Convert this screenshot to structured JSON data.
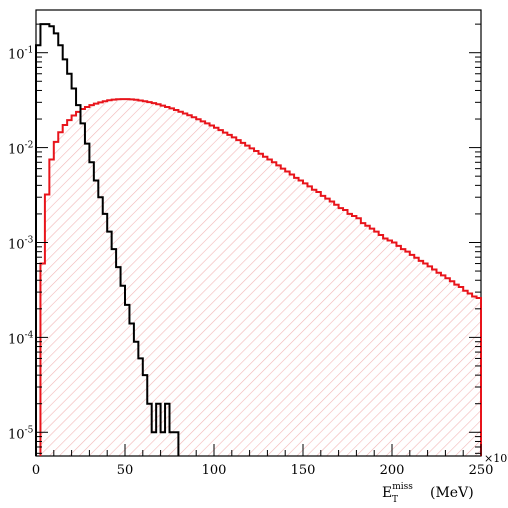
{
  "chart_data": {
    "type": "histogram",
    "y_scale": "log",
    "x_axis": {
      "range": [
        0,
        250
      ],
      "ticks": [
        0,
        50,
        100,
        150,
        200,
        250
      ],
      "exponent_label": "×10",
      "exponent_power": "3",
      "title_main": "E",
      "title_sub": "T",
      "title_sup": "miss",
      "title_unit": "(MeV)"
    },
    "y_axis": {
      "range_decades": [
        -5.25,
        -0.55
      ],
      "ticks": [
        {
          "exp": -1,
          "base": "10",
          "power": "-1"
        },
        {
          "exp": -2,
          "base": "10",
          "power": "-2"
        },
        {
          "exp": -3,
          "base": "10",
          "power": "-3"
        },
        {
          "exp": -4,
          "base": "10",
          "power": "-4"
        },
        {
          "exp": -5,
          "base": "10",
          "power": "-5"
        }
      ]
    },
    "bin_width": 2.5,
    "series": [
      {
        "color": "#e8141b",
        "fill": "hatched-light-red",
        "x_start": 2.5,
        "values": [
          0.0006,
          0.0032,
          0.0075,
          0.0115,
          0.0145,
          0.0173,
          0.0195,
          0.0218,
          0.0238,
          0.0255,
          0.0268,
          0.028,
          0.0291,
          0.03,
          0.0308,
          0.0315,
          0.032,
          0.0323,
          0.0324,
          0.0324,
          0.0322,
          0.0319,
          0.0314,
          0.0308,
          0.0301,
          0.0294,
          0.0286,
          0.0277,
          0.0268,
          0.0259,
          0.0249,
          0.0239,
          0.0229,
          0.0219,
          0.0209,
          0.0199,
          0.0189,
          0.018,
          0.0171,
          0.0162,
          0.0153,
          0.0144,
          0.0136,
          0.0128,
          0.012,
          0.0112,
          0.0105,
          0.0098,
          0.0092,
          0.0086,
          0.008,
          0.0075,
          0.007,
          0.0065,
          0.006,
          0.0056,
          0.0052,
          0.0048,
          0.0045,
          0.0042,
          0.0039,
          0.0036,
          0.0034,
          0.0031,
          0.0029,
          0.0027,
          0.0025,
          0.0023,
          0.0022,
          0.002,
          0.0019,
          0.0018,
          0.0016,
          0.0015,
          0.0014,
          0.0013,
          0.0012,
          0.0011,
          0.00105,
          0.001,
          0.00092,
          0.00085,
          0.0008,
          0.00074,
          0.00069,
          0.00064,
          0.0006,
          0.00056,
          0.00052,
          0.00048,
          0.00045,
          0.00042,
          0.00039,
          0.00036,
          0.00034,
          0.00031,
          0.00029,
          0.00027,
          0.00026
        ]
      },
      {
        "color": "#000000",
        "fill": "none",
        "x_start": 0,
        "values": [
          0.12,
          0.2,
          0.2,
          0.19,
          0.16,
          0.12,
          0.085,
          0.06,
          0.042,
          0.028,
          0.018,
          0.011,
          0.007,
          0.0045,
          0.003,
          0.002,
          0.0013,
          0.00085,
          0.00055,
          0.00035,
          0.00022,
          0.00014,
          9e-05,
          6e-05,
          4e-05,
          2e-05,
          1e-05,
          2e-05,
          1e-05,
          2e-05,
          1e-05,
          1e-05
        ]
      }
    ]
  }
}
